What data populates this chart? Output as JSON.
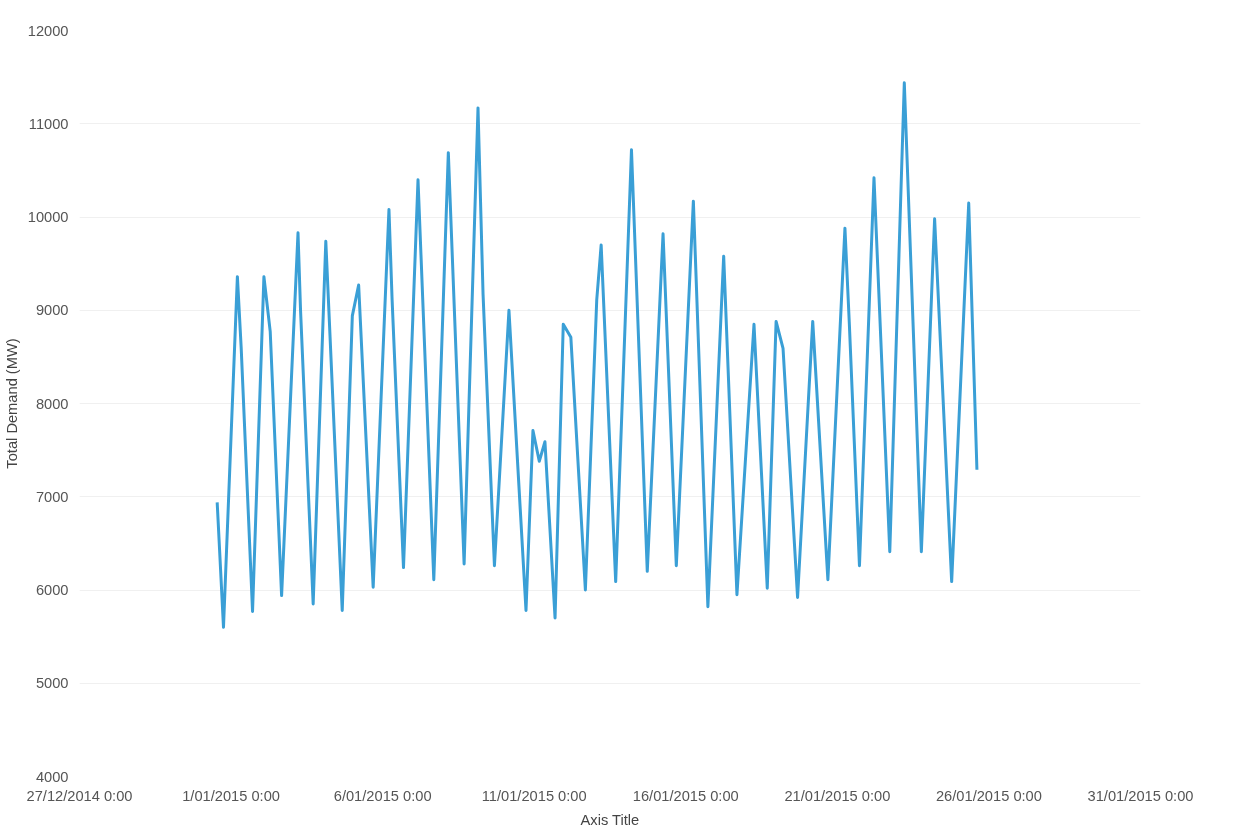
{
  "chart_data": {
    "type": "line",
    "xlabel": "Axis Title",
    "ylabel": "Total Demand (MW)",
    "x": [
      "2014-12-31T13:00",
      "2014-12-31T18:00",
      "2015-01-01T05:00",
      "2015-01-01T08:00",
      "2015-01-01T17:00",
      "2015-01-02T02:00",
      "2015-01-02T07:00",
      "2015-01-02T16:00",
      "2015-01-03T05:00",
      "2015-01-03T07:00",
      "2015-01-03T17:00",
      "2015-01-04T03:00",
      "2015-01-04T16:00",
      "2015-01-05T00:00",
      "2015-01-05T05:00",
      "2015-01-05T16:30",
      "2015-01-06T05:00",
      "2015-01-06T07:30",
      "2015-01-06T16:30",
      "2015-01-07T04:00",
      "2015-01-07T16:30",
      "2015-01-08T04:00",
      "2015-01-08T16:30",
      "2015-01-09T03:30",
      "2015-01-09T07:30",
      "2015-01-09T16:30",
      "2015-01-10T04:00",
      "2015-01-10T17:30",
      "2015-01-10T23:00",
      "2015-01-11T04:00",
      "2015-01-11T08:30",
      "2015-01-11T16:30",
      "2015-01-11T23:00",
      "2015-01-12T05:00",
      "2015-01-12T16:30",
      "2015-01-13T01:30",
      "2015-01-13T05:00",
      "2015-01-13T16:30",
      "2015-01-14T05:00",
      "2015-01-14T17:30",
      "2015-01-15T06:00",
      "2015-01-15T16:30",
      "2015-01-16T06:00",
      "2015-01-16T17:30",
      "2015-01-17T06:00",
      "2015-01-17T16:30",
      "2015-01-18T06:00",
      "2015-01-18T16:30",
      "2015-01-18T23:30",
      "2015-01-19T05:00",
      "2015-01-19T16:30",
      "2015-01-20T04:30",
      "2015-01-20T16:30",
      "2015-01-21T06:00",
      "2015-01-21T09:30",
      "2015-01-21T17:30",
      "2015-01-22T05:00",
      "2015-01-22T17:30",
      "2015-01-23T05:00",
      "2015-01-23T18:30",
      "2015-01-24T05:00",
      "2015-01-24T18:30",
      "2015-01-25T08:00",
      "2015-01-25T14:30"
    ],
    "series": [
      {
        "color": "#3a9fd6",
        "values": [
          6940,
          5600,
          9360,
          8600,
          5770,
          9360,
          8770,
          5940,
          9830,
          9000,
          5850,
          9740,
          5780,
          8940,
          9270,
          6030,
          10080,
          9110,
          6240,
          10400,
          6110,
          10690,
          6280,
          11170,
          9170,
          6260,
          9000,
          5780,
          7710,
          7380,
          7590,
          5700,
          8850,
          8710,
          6000,
          9110,
          9700,
          6090,
          10720,
          6200,
          9820,
          6260,
          10170,
          5820,
          9580,
          5950,
          8850,
          6020,
          8880,
          8590,
          5920,
          8880,
          6110,
          9880,
          8850,
          6260,
          10420,
          6410,
          11440,
          6410,
          9980,
          6090,
          10150,
          7290
        ]
      }
    ],
    "xlim": [
      "2014-12-27",
      "2015-01-31"
    ],
    "xticks": [
      {
        "value": "2014-12-27",
        "label": "27/12/2014 0:00"
      },
      {
        "value": "2015-01-01",
        "label": "1/01/2015 0:00"
      },
      {
        "value": "2015-01-06",
        "label": "6/01/2015 0:00"
      },
      {
        "value": "2015-01-11",
        "label": "11/01/2015 0:00"
      },
      {
        "value": "2015-01-16",
        "label": "16/01/2015 0:00"
      },
      {
        "value": "2015-01-21",
        "label": "21/01/2015 0:00"
      },
      {
        "value": "2015-01-26",
        "label": "26/01/2015 0:00"
      },
      {
        "value": "2015-01-31",
        "label": "31/01/2015 0:00"
      }
    ],
    "ylim": [
      4000,
      12000
    ],
    "yticks": [
      4000,
      5000,
      6000,
      7000,
      8000,
      9000,
      10000,
      11000,
      12000
    ],
    "grid": "y",
    "marker": "none",
    "line_style": "solid"
  }
}
